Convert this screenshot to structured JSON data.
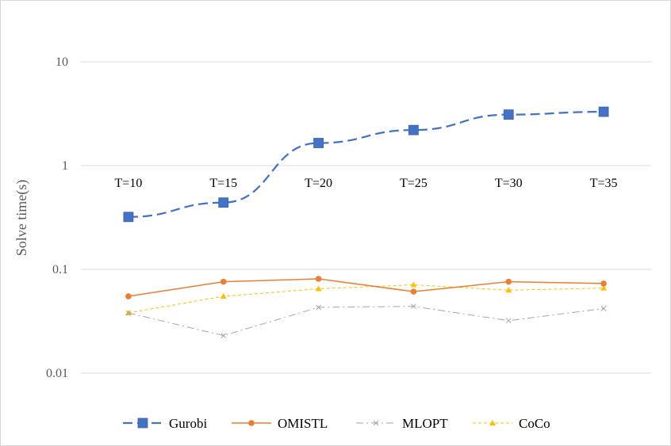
{
  "chart_data": {
    "type": "line",
    "y_scale": "log",
    "ylim": [
      0.01,
      10
    ],
    "ylabel": "Solve time(s)",
    "xlabel": "",
    "title": "",
    "grid": true,
    "legend_position": "bottom",
    "categories": [
      "T=10",
      "T=15",
      "T=20",
      "T=25",
      "T=30",
      "T=35"
    ],
    "y_ticks": [
      {
        "value": 10,
        "label": "10"
      },
      {
        "value": 1,
        "label": "1"
      },
      {
        "value": 0.1,
        "label": "0.1"
      },
      {
        "value": 0.01,
        "label": "0.01"
      }
    ],
    "series": [
      {
        "name": "Gurobi",
        "values": [
          0.32,
          0.44,
          1.65,
          2.2,
          3.1,
          3.3
        ],
        "color": "#4472C4",
        "marker": "square",
        "dash": "long-dash"
      },
      {
        "name": "OMISTL",
        "values": [
          0.055,
          0.076,
          0.081,
          0.061,
          0.076,
          0.073
        ],
        "color": "#ED7D31",
        "marker": "circle",
        "dash": "solid"
      },
      {
        "name": "MLOPT",
        "values": [
          0.038,
          0.023,
          0.043,
          0.044,
          0.032,
          0.042
        ],
        "color": "#A5A5A5",
        "marker": "x",
        "dash": "dash-dot"
      },
      {
        "name": "CoCo",
        "values": [
          0.038,
          0.055,
          0.065,
          0.071,
          0.063,
          0.066
        ],
        "color": "#FFC000",
        "marker": "triangle",
        "dash": "dotted"
      }
    ]
  }
}
